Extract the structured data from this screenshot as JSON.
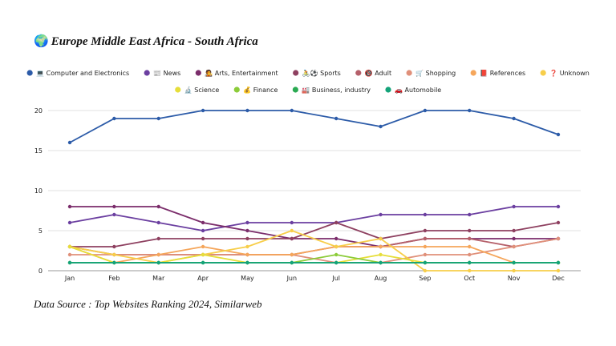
{
  "header": {
    "globe_icon": "🌍",
    "title": "Europe Middle East Africa - South Africa"
  },
  "footer": {
    "source": "Data Source : Top Websites Ranking 2024, Similarweb"
  },
  "chart_data": {
    "type": "line",
    "title": "Europe Middle East Africa - South Africa",
    "xlabel": "",
    "ylabel": "",
    "ylim": [
      0,
      22
    ],
    "yticks": [
      0,
      5,
      10,
      15,
      20
    ],
    "grid": true,
    "legend_position": "top",
    "categories": [
      "Jan",
      "Feb",
      "Mar",
      "Apr",
      "May",
      "Jun",
      "Jul",
      "Aug",
      "Sep",
      "Oct",
      "Nov",
      "Dec"
    ],
    "series": [
      {
        "name": "💻 Computer and Electronics",
        "color": "#2C5BA8",
        "values": [
          16,
          19,
          19,
          20,
          20,
          20,
          19,
          18,
          20,
          20,
          19,
          17
        ]
      },
      {
        "name": "📰 News",
        "color": "#6B3FA0",
        "values": [
          6,
          7,
          6,
          5,
          6,
          6,
          6,
          7,
          7,
          7,
          8,
          8
        ]
      },
      {
        "name": "🧑‍🎤 Arts, Entertainment",
        "color": "#7B2D6B",
        "values": [
          8,
          8,
          8,
          6,
          5,
          4,
          4,
          3,
          4,
          4,
          4,
          4
        ]
      },
      {
        "name": "🚴⚽ Sports",
        "color": "#8E4060",
        "values": [
          3,
          3,
          4,
          4,
          4,
          4,
          6,
          4,
          5,
          5,
          5,
          6
        ]
      },
      {
        "name": "🔞 Adult",
        "color": "#B5606A",
        "values": [
          3,
          2,
          2,
          2,
          2,
          2,
          3,
          3,
          4,
          4,
          3,
          4
        ]
      },
      {
        "name": "🛒 Shopping",
        "color": "#E0907A",
        "values": [
          2,
          2,
          2,
          2,
          2,
          2,
          1,
          1,
          2,
          2,
          3,
          4
        ]
      },
      {
        "name": "📕 References",
        "color": "#F5A65B",
        "values": [
          3,
          1,
          2,
          3,
          2,
          2,
          3,
          3,
          3,
          3,
          1,
          1
        ]
      },
      {
        "name": "❓ Unknown",
        "color": "#F7CE4A",
        "values": [
          3,
          2,
          1,
          2,
          3,
          5,
          3,
          4,
          0,
          0,
          0,
          0
        ]
      },
      {
        "name": "🔬 Science",
        "color": "#E6DE3A",
        "values": [
          3,
          1,
          1,
          2,
          1,
          1,
          1,
          2,
          1,
          1,
          1,
          1
        ]
      },
      {
        "name": "💰 Finance",
        "color": "#8CCC3A",
        "values": [
          1,
          1,
          1,
          1,
          1,
          1,
          2,
          1,
          1,
          1,
          1,
          1
        ]
      },
      {
        "name": "🏭 Business, industry",
        "color": "#2AAA52",
        "values": [
          1,
          1,
          1,
          1,
          1,
          1,
          1,
          1,
          1,
          1,
          1,
          1
        ]
      },
      {
        "name": "🚗 Automobile",
        "color": "#14A37A",
        "values": [
          1,
          1,
          1,
          1,
          1,
          1,
          1,
          1,
          1,
          1,
          1,
          1
        ]
      }
    ]
  }
}
